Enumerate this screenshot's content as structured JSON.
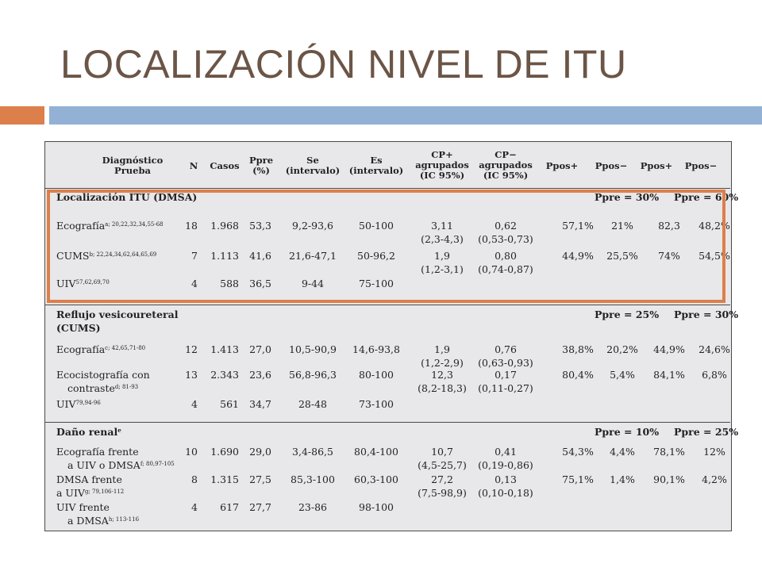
{
  "title": "LOCALIZACIÓN NIVEL DE ITU",
  "colors": {
    "title": "#6b5546",
    "accent_orange": "#dd7f4a",
    "accent_blue": "#92b1d4",
    "table_bg": "#e8e8ea"
  },
  "headers": {
    "diag1": "Diagnóstico",
    "diag2": "Prueba",
    "n": "N",
    "casos": "Casos",
    "ppre1": "Ppre",
    "ppre2": "(%)",
    "se1": "Se",
    "se2": "(intervalo)",
    "es1": "Es",
    "es2": "(intervalo)",
    "cpp1": "CP+",
    "cpp2": "agrupados",
    "cpp3": "(IC 95%)",
    "cpm1": "CP−",
    "cpm2": "agrupados",
    "cpm3": "(IC 95%)",
    "ppos_plus_a": "Ppos+",
    "ppos_minus_a": "Ppos−",
    "ppos_plus_b": "Ppos+",
    "ppos_minus_b": "Ppos−"
  },
  "sections": [
    {
      "heading": "Localización ITU (DMSA)",
      "heading2": "",
      "ppre_a": "Ppre = 30%",
      "ppre_b": "Ppre = 60%",
      "rows": [
        {
          "name1": "Ecografía",
          "sup1": "a; 20,22,32,34,55-68",
          "name2": "",
          "sup2": "",
          "n": "18",
          "casos": "1.968",
          "ppre": "53,3",
          "se": "9,2-93,6",
          "es": "50-100",
          "cpp": "3,11",
          "cpp_ic": "(2,3-4,3)",
          "cpm": "0,62",
          "cpm_ic": "(0,53-0,73)",
          "p1": "57,1%",
          "p2": "21%",
          "p3": "82,3",
          "p4": "48,2%"
        },
        {
          "name1": "CUMS",
          "sup1": "b; 22,24,34,62,64,65,69",
          "name2": "",
          "sup2": "",
          "n": "7",
          "casos": "1.113",
          "ppre": "41,6",
          "se": "21,6-47,1",
          "es": "50-96,2",
          "cpp": "1,9",
          "cpp_ic": "(1,2-3,1)",
          "cpm": "0,80",
          "cpm_ic": "(0,74-0,87)",
          "p1": "44,9%",
          "p2": "25,5%",
          "p3": "74%",
          "p4": "54,5%"
        },
        {
          "name1": "UIV",
          "sup1": "57,62,69,70",
          "name2": "",
          "sup2": "",
          "n": "4",
          "casos": "588",
          "ppre": "36,5",
          "se": "9-44",
          "es": "75-100",
          "cpp": "",
          "cpp_ic": "",
          "cpm": "",
          "cpm_ic": "",
          "p1": "",
          "p2": "",
          "p3": "",
          "p4": ""
        }
      ]
    },
    {
      "heading": "Reflujo vesicoureteral",
      "heading2": "(CUMS)",
      "ppre_a": "Ppre = 25%",
      "ppre_b": "Ppre = 30%",
      "rows": [
        {
          "name1": "Ecografía",
          "sup1": "c; 42,65,71-80",
          "name2": "",
          "sup2": "",
          "n": "12",
          "casos": "1.413",
          "ppre": "27,0",
          "se": "10,5-90,9",
          "es": "14,6-93,8",
          "cpp": "1,9",
          "cpp_ic": "(1,2-2,9)",
          "cpm": "0,76",
          "cpm_ic": "(0,63-0,93)",
          "p1": "38,8%",
          "p2": "20,2%",
          "p3": "44,9%",
          "p4": "24,6%"
        },
        {
          "name1": "Ecocistografía con",
          "sup1": "",
          "name2": "contraste",
          "sup2": "d; 81-93",
          "n": "13",
          "casos": "2.343",
          "ppre": "23,6",
          "se": "56,8-96,3",
          "es": "80-100",
          "cpp": "12,3",
          "cpp_ic": "(8,2-18,3)",
          "cpm": "0,17",
          "cpm_ic": "(0,11-0,27)",
          "p1": "80,4%",
          "p2": "5,4%",
          "p3": "84,1%",
          "p4": "6,8%"
        },
        {
          "name1": "UIV",
          "sup1": "79,94-96",
          "name2": "",
          "sup2": "",
          "n": "4",
          "casos": "561",
          "ppre": "34,7",
          "se": "28-48",
          "es": "73-100",
          "cpp": "",
          "cpp_ic": "",
          "cpm": "",
          "cpm_ic": "",
          "p1": "",
          "p2": "",
          "p3": "",
          "p4": ""
        }
      ]
    },
    {
      "heading": "Daño renal",
      "heading_sup": "e",
      "heading2": "",
      "ppre_a": "Ppre = 10%",
      "ppre_b": "Ppre = 25%",
      "rows": [
        {
          "name1": "Ecografía frente",
          "sup1": "",
          "name2": "a UIV o DMSA",
          "sup2": "f; 80,97-105",
          "n": "10",
          "casos": "1.690",
          "ppre": "29,0",
          "se": "3,4-86,5",
          "es": "80,4-100",
          "cpp": "10,7",
          "cpp_ic": "(4,5-25,7)",
          "cpm": "0,41",
          "cpm_ic": "(0,19-0,86)",
          "p1": "54,3%",
          "p2": "4,4%",
          "p3": "78,1%",
          "p4": "12%"
        },
        {
          "name1": "DMSA frente",
          "sup1": "",
          "name2": "a UIV",
          "sup2": "g; 79,106-112",
          "n": "8",
          "casos": "1.315",
          "ppre": "27,5",
          "se": "85,3-100",
          "es": "60,3-100",
          "cpp": "27,2",
          "cpp_ic": "(7,5-98,9)",
          "cpm": "0,13",
          "cpm_ic": "(0,10-0,18)",
          "p1": "75,1%",
          "p2": "1,4%",
          "p3": "90,1%",
          "p4": "4,2%"
        },
        {
          "name1": "UIV frente",
          "sup1": "",
          "name2": "a DMSA",
          "sup2": "h; 113-116",
          "n": "4",
          "casos": "617",
          "ppre": "27,7",
          "se": "23-86",
          "es": "98-100",
          "cpp": "",
          "cpp_ic": "",
          "cpm": "",
          "cpm_ic": "",
          "p1": "",
          "p2": "",
          "p3": "",
          "p4": ""
        }
      ]
    }
  ]
}
